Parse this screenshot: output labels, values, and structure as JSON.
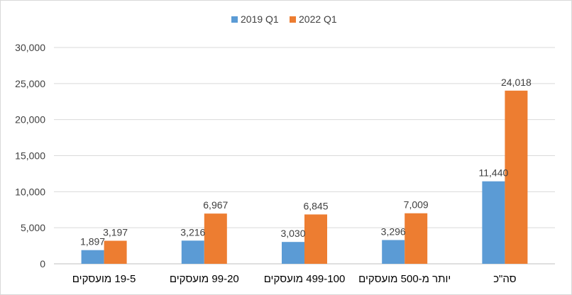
{
  "chart_data": {
    "type": "bar",
    "title": "",
    "xlabel": "",
    "ylabel": "",
    "categories": [
      "19-5 מועסקים",
      "99-20 מועסקים",
      "499-100 מועסקים",
      "יותר מ-500 מועסקים",
      "סה\"כ"
    ],
    "series": [
      {
        "name": "2019 Q1",
        "color": "#5b9bd5",
        "values": [
          1897,
          3216,
          3030,
          3296,
          11440
        ],
        "labels": [
          "1,897",
          "3,216",
          "3,030",
          "3,296",
          "11,440"
        ]
      },
      {
        "name": "2022 Q1",
        "color": "#ed7d31",
        "values": [
          3197,
          6967,
          6845,
          7009,
          24018
        ],
        "labels": [
          "3,197",
          "6,967",
          "6,845",
          "7,009",
          "24,018"
        ]
      }
    ],
    "ylim": [
      0,
      30000
    ],
    "yticks": [
      0,
      5000,
      10000,
      15000,
      20000,
      25000,
      30000
    ],
    "ytick_labels": [
      "0",
      "5,000",
      "10,000",
      "15,000",
      "20,000",
      "25,000",
      "30,000"
    ],
    "grid": true,
    "legend_position": "top"
  }
}
